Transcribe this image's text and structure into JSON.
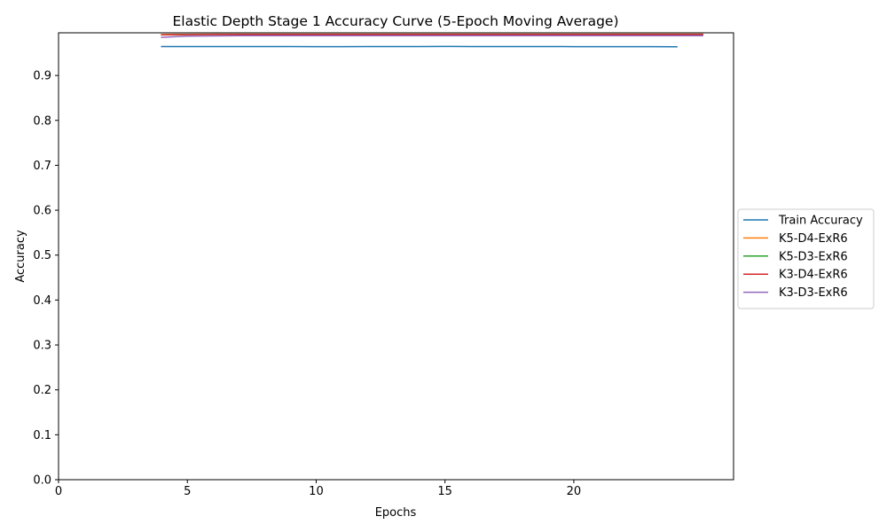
{
  "chart_data": {
    "type": "line",
    "title": "Elastic Depth Stage 1 Accuracy Curve (5-Epoch Moving Average)",
    "xlabel": "Epochs",
    "ylabel": "Accuracy",
    "xlim": [
      0,
      26.2
    ],
    "ylim": [
      0,
      0.995
    ],
    "xticks": [
      "0",
      "5",
      "10",
      "15",
      "20"
    ],
    "xtick_values": [
      0,
      5,
      10,
      15,
      20
    ],
    "yticks": [
      "0.0",
      "0.1",
      "0.2",
      "0.3",
      "0.4",
      "0.5",
      "0.6",
      "0.7",
      "0.8",
      "0.9"
    ],
    "ytick_values": [
      0,
      0.1,
      0.2,
      0.3,
      0.4,
      0.5,
      0.6,
      0.7,
      0.8,
      0.9
    ],
    "grid": false,
    "legend_position": "outside-right",
    "series": [
      {
        "name": "Train Accuracy",
        "color": "#1f77b4",
        "x": [
          4,
          5,
          6,
          7,
          8,
          9,
          10,
          11,
          12,
          13,
          14,
          15,
          16,
          17,
          18,
          19,
          20,
          21,
          22,
          23,
          24
        ],
        "y": [
          0.9645,
          0.9645,
          0.9645,
          0.9643,
          0.9643,
          0.9643,
          0.9642,
          0.9642,
          0.9643,
          0.9644,
          0.9645,
          0.9646,
          0.9645,
          0.9645,
          0.9644,
          0.9644,
          0.9642,
          0.9642,
          0.9642,
          0.9641,
          0.964
        ]
      },
      {
        "name": "K5-D4-ExR6",
        "color": "#ff7f0e",
        "x": [
          4,
          5,
          6,
          7,
          8,
          9,
          10,
          11,
          12,
          13,
          14,
          15,
          16,
          17,
          18,
          19,
          20,
          21,
          22,
          23,
          24,
          25
        ],
        "y": [
          0.991,
          0.9915,
          0.9917,
          0.9918,
          0.9918,
          0.9918,
          0.9918,
          0.9918,
          0.9918,
          0.9918,
          0.9918,
          0.9918,
          0.9918,
          0.9918,
          0.9918,
          0.9918,
          0.9918,
          0.9918,
          0.9918,
          0.9918,
          0.9918,
          0.9918
        ]
      },
      {
        "name": "K5-D3-ExR6",
        "color": "#2ca02c",
        "x": [
          4,
          5,
          6,
          7,
          8,
          9,
          10,
          11,
          12,
          13,
          14,
          15,
          16,
          17,
          18,
          19,
          20,
          21,
          22,
          23,
          24,
          25
        ],
        "y": [
          0.9905,
          0.9912,
          0.9915,
          0.9916,
          0.9916,
          0.9916,
          0.9916,
          0.9916,
          0.9916,
          0.9916,
          0.9916,
          0.9916,
          0.9916,
          0.9916,
          0.9916,
          0.9916,
          0.9916,
          0.9916,
          0.9916,
          0.9916,
          0.9916,
          0.9916
        ]
      },
      {
        "name": "K3-D4-ExR6",
        "color": "#d62728",
        "x": [
          4,
          5,
          6,
          7,
          8,
          9,
          10,
          11,
          12,
          13,
          14,
          15,
          16,
          17,
          18,
          19,
          20,
          21,
          22,
          23,
          24,
          25
        ],
        "y": [
          0.9905,
          0.991,
          0.9912,
          0.9913,
          0.9913,
          0.9913,
          0.9913,
          0.9913,
          0.9913,
          0.9913,
          0.9913,
          0.9913,
          0.9913,
          0.9913,
          0.9913,
          0.9913,
          0.9913,
          0.9913,
          0.9913,
          0.9913,
          0.9913,
          0.9913
        ]
      },
      {
        "name": "K3-D3-ExR6",
        "color": "#9467bd",
        "x": [
          4,
          5,
          6,
          7,
          8,
          9,
          10,
          11,
          12,
          13,
          14,
          15,
          16,
          17,
          18,
          19,
          20,
          21,
          22,
          23,
          24,
          25
        ],
        "y": [
          0.985,
          0.9875,
          0.9882,
          0.9885,
          0.9886,
          0.9886,
          0.9886,
          0.9886,
          0.9886,
          0.9886,
          0.9886,
          0.9886,
          0.9886,
          0.9886,
          0.9886,
          0.9886,
          0.9886,
          0.9886,
          0.9886,
          0.9886,
          0.9886,
          0.9886
        ]
      }
    ]
  }
}
